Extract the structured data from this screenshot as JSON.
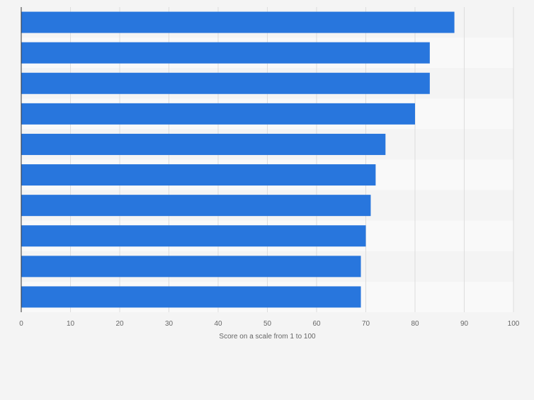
{
  "chart_data": {
    "type": "bar",
    "orientation": "horizontal",
    "categories": [
      "",
      "",
      "",
      "",
      "",
      "",
      "",
      "",
      "",
      ""
    ],
    "values": [
      88,
      83,
      83,
      80,
      74,
      72,
      71,
      70,
      69,
      69
    ],
    "title": "",
    "xlabel": "Score on a scale from 1 to 100",
    "ylabel": "",
    "xlim": [
      0,
      100
    ],
    "xticks": [
      "0",
      "10",
      "20",
      "30",
      "40",
      "50",
      "60",
      "70",
      "80",
      "90",
      "100"
    ],
    "grid": true,
    "legend": "none",
    "colors": {
      "bar": "#2876dd",
      "background": "#f4f4f4",
      "band": "#f9f9f9",
      "grid": "#dddddd",
      "axis": "#333333",
      "tick_text": "#666666"
    }
  }
}
